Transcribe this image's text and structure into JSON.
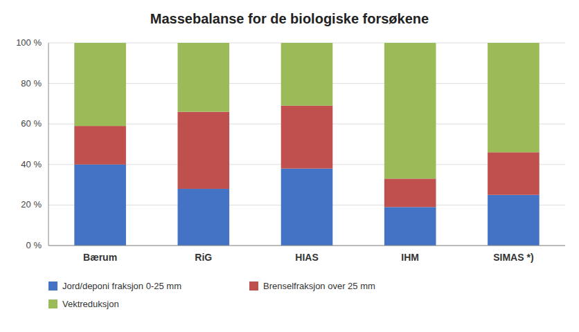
{
  "chart_data": {
    "type": "bar",
    "stacked": true,
    "title": "Massebalanse for de biologiske forsøkene",
    "categories": [
      "Bærum",
      "RiG",
      "HIAS",
      "IHM",
      "SIMAS *)"
    ],
    "series": [
      {
        "name": "Jord/deponi fraksjon 0-25 mm",
        "color": "#4472C4",
        "values": [
          40,
          28,
          38,
          19,
          25
        ]
      },
      {
        "name": "Brenselfraksjon over 25 mm",
        "color": "#C0504D",
        "values": [
          19,
          38,
          31,
          14,
          21
        ]
      },
      {
        "name": "Vektreduksjon",
        "color": "#9BBB59",
        "values": [
          41,
          34,
          31,
          67,
          54
        ]
      }
    ],
    "ylim": [
      0,
      100
    ],
    "yticks": [
      {
        "value": 0,
        "label": "0 %"
      },
      {
        "value": 20,
        "label": "20 %"
      },
      {
        "value": 40,
        "label": "40 %"
      },
      {
        "value": 60,
        "label": "60 %"
      },
      {
        "value": 80,
        "label": "80 %"
      },
      {
        "value": 100,
        "label": "100 %"
      }
    ],
    "grid": true,
    "legend": "bottom"
  }
}
